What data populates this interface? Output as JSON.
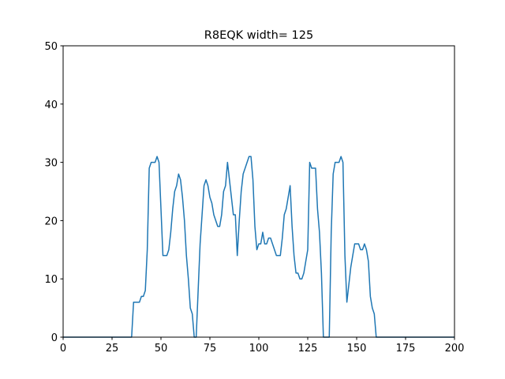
{
  "chart_data": {
    "type": "line",
    "title": "R8EQK width= 125",
    "x": [
      0,
      35,
      36,
      37,
      38,
      39,
      40,
      41,
      42,
      43,
      44,
      45,
      46,
      47,
      48,
      49,
      50,
      51,
      52,
      53,
      54,
      55,
      56,
      57,
      58,
      59,
      60,
      61,
      62,
      63,
      64,
      65,
      66,
      67,
      68,
      69,
      70,
      71,
      72,
      73,
      74,
      75,
      76,
      77,
      78,
      79,
      80,
      81,
      82,
      83,
      84,
      85,
      86,
      87,
      88,
      89,
      90,
      91,
      92,
      93,
      94,
      95,
      96,
      97,
      98,
      99,
      100,
      101,
      102,
      103,
      104,
      105,
      106,
      107,
      108,
      109,
      110,
      111,
      112,
      113,
      114,
      115,
      116,
      117,
      118,
      119,
      120,
      121,
      122,
      123,
      124,
      125,
      126,
      127,
      128,
      129,
      130,
      131,
      132,
      133,
      134,
      135,
      136,
      137,
      138,
      139,
      140,
      141,
      142,
      143,
      144,
      145,
      146,
      147,
      148,
      149,
      150,
      151,
      152,
      153,
      154,
      155,
      156,
      157,
      158,
      159,
      160,
      200
    ],
    "series": [
      {
        "color": "#1f77b4",
        "values": [
          0,
          0,
          6,
          6,
          6,
          6,
          7,
          7,
          8,
          15,
          29,
          30,
          30,
          30,
          31,
          30,
          22,
          14,
          14,
          14,
          15,
          18,
          22,
          25,
          26,
          28,
          27,
          24,
          20,
          14,
          10,
          5,
          4,
          0,
          0,
          8,
          16,
          21,
          26,
          27,
          26,
          24,
          23,
          21,
          20,
          19,
          19,
          21,
          25,
          26,
          30,
          27,
          24,
          21,
          21,
          14,
          20,
          25,
          28,
          29,
          30,
          31,
          31,
          27,
          19,
          15,
          16,
          16,
          18,
          16,
          16,
          17,
          17,
          16,
          15,
          14,
          14,
          14,
          17,
          21,
          22,
          24,
          26,
          19,
          14,
          11,
          11,
          10,
          10,
          11,
          13,
          15,
          30,
          29,
          29,
          29,
          22,
          18,
          11,
          0,
          0,
          0,
          0,
          18,
          28,
          30,
          30,
          30,
          31,
          30,
          14,
          6,
          9,
          12,
          14,
          16,
          16,
          16,
          15,
          15,
          16,
          15,
          13,
          7,
          5,
          4,
          0,
          0
        ]
      }
    ],
    "xlim": [
      0,
      200
    ],
    "ylim": [
      0,
      50
    ],
    "xticks": [
      0,
      25,
      50,
      75,
      100,
      125,
      150,
      175,
      200
    ],
    "yticks": [
      0,
      10,
      20,
      30,
      40,
      50
    ]
  }
}
